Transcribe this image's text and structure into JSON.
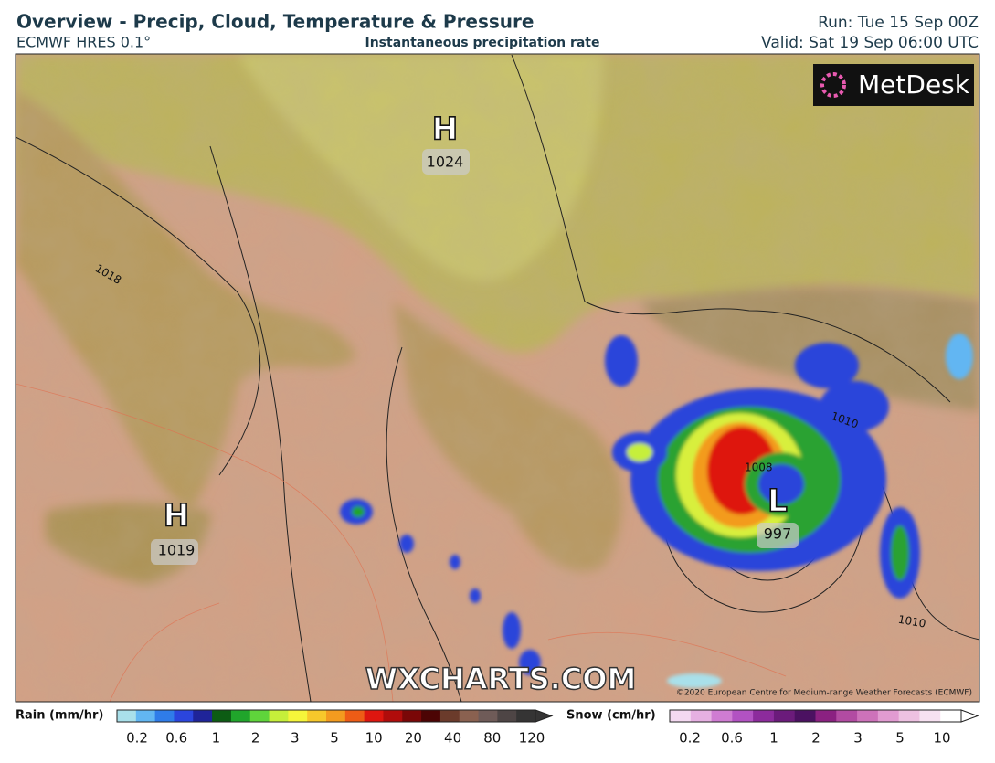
{
  "header": {
    "title": "Overview - Precip, Cloud, Temperature & Pressure",
    "model": "ECMWF HRES 0.1°",
    "field": "Instantaneous precipitation rate",
    "run": "Run: Tue 15 Sep 00Z",
    "valid": "Valid: Sat 19 Sep 06:00 UTC"
  },
  "map": {
    "brand": "MetDesk",
    "watermark": "WXCHARTS.COM",
    "copyright": "©2020 European Centre for Medium-range Weather Forecasts (ECMWF)",
    "centers": [
      {
        "symbol": "H",
        "pressure": 1024
      },
      {
        "symbol": "H",
        "pressure": 1019
      },
      {
        "symbol": "L",
        "pressure": 997
      }
    ],
    "isobar_labels": [
      1018,
      1010,
      1008,
      1010
    ]
  },
  "legend": {
    "rain": {
      "label": "Rain (mm/hr)",
      "ticks": [
        0.2,
        0.6,
        1,
        2,
        3,
        5,
        10,
        20,
        40,
        80,
        120
      ],
      "colors": [
        "#a9e0ea",
        "#62b6f2",
        "#2f7ce9",
        "#2b45dd",
        "#1f2499",
        "#0d5c14",
        "#20a52b",
        "#5fd43b",
        "#c6ef3a",
        "#f5f53a",
        "#f7c82b",
        "#f39b1f",
        "#ee5c16",
        "#de160f",
        "#b00c0b",
        "#7a0707",
        "#4c0404",
        "#6b3b2b",
        "#8a6150",
        "#6f5b58",
        "#4e4545",
        "#353434"
      ]
    },
    "snow": {
      "label": "Snow (cm/hr)",
      "ticks": [
        0.2,
        0.6,
        1,
        2,
        3,
        5,
        10
      ],
      "colors": [
        "#f4d9f1",
        "#e6b0e2",
        "#cf7cd2",
        "#b252c2",
        "#8c2b9c",
        "#6b1b7b",
        "#4b1161",
        "#8b2181",
        "#b24ba2",
        "#cd72ba",
        "#e19bd1",
        "#edc1e1",
        "#f7e1f1",
        "#ffffff"
      ]
    }
  }
}
